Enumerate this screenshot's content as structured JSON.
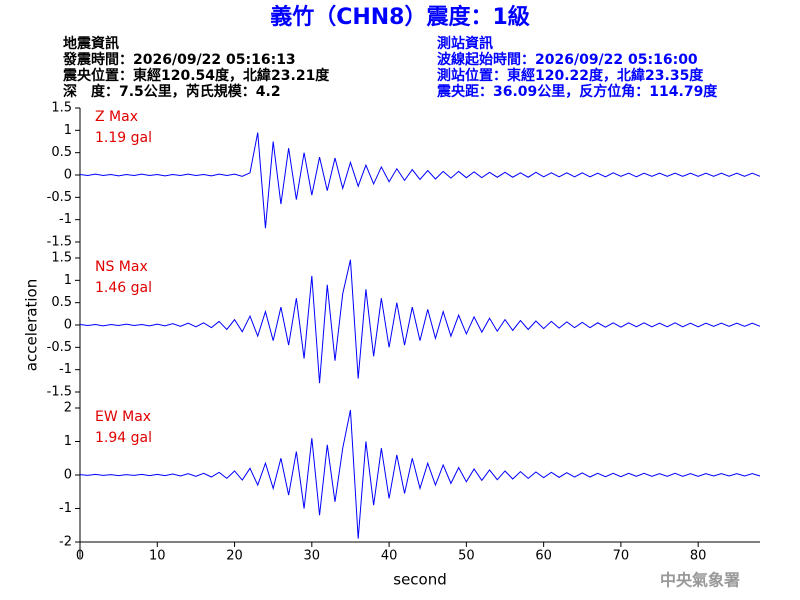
{
  "title": "義竹（CHN8）震度：1級",
  "event_info": [
    "地震資訊",
    "發震時間：2026/09/22 05:16:13",
    "震央位置：東經120.54度，北緯23.21度",
    "深　度：7.5公里，芮氏規模：4.2"
  ],
  "station_info": [
    "測站資訊",
    "波線起始時間：2026/09/22 05:16:00",
    "測站位置：東經120.22度，北緯23.35度",
    "震央距：36.09公里，反方位角：114.79度"
  ],
  "credit": "中央氣象署",
  "chart_data": [
    {
      "type": "line",
      "annotations": [
        "Z Max",
        "1.19 gal"
      ],
      "color": "#0000ff",
      "xlim": [
        0,
        88
      ],
      "ylim": [
        -1.5,
        1.5
      ],
      "yticks": [
        -1.5,
        -1,
        -0.5,
        0,
        0.5,
        1,
        1.5
      ],
      "x": [
        0,
        1,
        2,
        3,
        4,
        5,
        6,
        7,
        8,
        9,
        10,
        11,
        12,
        13,
        14,
        15,
        16,
        17,
        18,
        19,
        20,
        21,
        22,
        23,
        24,
        25,
        26,
        27,
        28,
        29,
        30,
        31,
        32,
        33,
        34,
        35,
        36,
        37,
        38,
        39,
        40,
        41,
        42,
        43,
        44,
        45,
        46,
        47,
        48,
        49,
        50,
        51,
        52,
        53,
        54,
        55,
        56,
        57,
        58,
        59,
        60,
        61,
        62,
        63,
        64,
        65,
        66,
        67,
        68,
        69,
        70,
        71,
        72,
        73,
        74,
        75,
        76,
        77,
        78,
        79,
        80,
        81,
        82,
        83,
        84,
        85,
        86,
        87,
        88
      ],
      "values": [
        0.01,
        -0.01,
        0.02,
        -0.01,
        0.01,
        -0.02,
        0.01,
        -0.01,
        0.02,
        -0.01,
        0.01,
        -0.02,
        0.01,
        -0.01,
        0.02,
        -0.01,
        0.01,
        -0.02,
        0.02,
        -0.01,
        0.02,
        -0.03,
        0.05,
        0.95,
        -1.19,
        0.75,
        -0.65,
        0.6,
        -0.55,
        0.5,
        -0.45,
        0.4,
        -0.35,
        0.38,
        -0.3,
        0.28,
        -0.25,
        0.22,
        -0.2,
        0.18,
        -0.15,
        0.14,
        -0.12,
        0.12,
        -0.1,
        0.1,
        -0.09,
        0.08,
        -0.07,
        0.08,
        -0.06,
        0.07,
        -0.06,
        0.06,
        -0.05,
        0.06,
        -0.05,
        0.05,
        -0.05,
        0.06,
        -0.04,
        0.05,
        -0.04,
        0.05,
        -0.04,
        0.05,
        -0.04,
        0.04,
        -0.04,
        0.05,
        -0.03,
        0.04,
        -0.04,
        0.04,
        -0.03,
        0.04,
        -0.03,
        0.04,
        -0.03,
        0.04,
        -0.03,
        0.04,
        -0.03,
        0.04,
        -0.03,
        0.04,
        -0.03,
        0.04,
        -0.03
      ]
    },
    {
      "type": "line",
      "annotations": [
        "NS Max",
        "1.46 gal"
      ],
      "color": "#0000ff",
      "ylabel": "acceleration",
      "xlim": [
        0,
        88
      ],
      "ylim": [
        -1.5,
        1.5
      ],
      "yticks": [
        -1.5,
        -1,
        -0.5,
        0,
        0.5,
        1,
        1.5
      ],
      "x": [
        0,
        1,
        2,
        3,
        4,
        5,
        6,
        7,
        8,
        9,
        10,
        11,
        12,
        13,
        14,
        15,
        16,
        17,
        18,
        19,
        20,
        21,
        22,
        23,
        24,
        25,
        26,
        27,
        28,
        29,
        30,
        31,
        32,
        33,
        34,
        35,
        36,
        37,
        38,
        39,
        40,
        41,
        42,
        43,
        44,
        45,
        46,
        47,
        48,
        49,
        50,
        51,
        52,
        53,
        54,
        55,
        56,
        57,
        58,
        59,
        60,
        61,
        62,
        63,
        64,
        65,
        66,
        67,
        68,
        69,
        70,
        71,
        72,
        73,
        74,
        75,
        76,
        77,
        78,
        79,
        80,
        81,
        82,
        83,
        84,
        85,
        86,
        87,
        88
      ],
      "values": [
        0.01,
        -0.01,
        0.01,
        -0.02,
        0.01,
        -0.01,
        0.02,
        -0.01,
        0.01,
        -0.02,
        0.02,
        -0.02,
        0.03,
        -0.03,
        0.04,
        -0.04,
        0.05,
        -0.06,
        0.08,
        -0.1,
        0.12,
        -0.15,
        0.2,
        -0.25,
        0.3,
        -0.35,
        0.4,
        -0.45,
        0.6,
        -0.75,
        1.1,
        -1.3,
        0.9,
        -0.8,
        0.7,
        1.46,
        -1.2,
        0.8,
        -0.7,
        0.6,
        -0.5,
        0.5,
        -0.45,
        0.4,
        -0.35,
        0.35,
        -0.3,
        0.3,
        -0.25,
        0.22,
        -0.2,
        0.18,
        -0.16,
        0.15,
        -0.14,
        0.12,
        -0.12,
        0.1,
        -0.1,
        0.09,
        -0.08,
        0.08,
        -0.07,
        0.07,
        -0.06,
        0.06,
        -0.06,
        0.05,
        -0.05,
        0.05,
        -0.05,
        0.05,
        -0.04,
        0.05,
        -0.04,
        0.04,
        -0.04,
        0.05,
        -0.04,
        0.04,
        -0.04,
        0.04,
        -0.03,
        0.04,
        -0.03,
        0.04,
        -0.03,
        0.04,
        -0.03
      ]
    },
    {
      "type": "line",
      "annotations": [
        "EW Max",
        "1.94 gal"
      ],
      "color": "#0000ff",
      "xlabel": "second",
      "xlim": [
        0,
        88
      ],
      "xticks": [
        0,
        10,
        20,
        30,
        40,
        50,
        60,
        70,
        80
      ],
      "ylim": [
        -2,
        2
      ],
      "yticks": [
        -2,
        -1,
        0,
        1,
        2
      ],
      "x": [
        0,
        1,
        2,
        3,
        4,
        5,
        6,
        7,
        8,
        9,
        10,
        11,
        12,
        13,
        14,
        15,
        16,
        17,
        18,
        19,
        20,
        21,
        22,
        23,
        24,
        25,
        26,
        27,
        28,
        29,
        30,
        31,
        32,
        33,
        34,
        35,
        36,
        37,
        38,
        39,
        40,
        41,
        42,
        43,
        44,
        45,
        46,
        47,
        48,
        49,
        50,
        51,
        52,
        53,
        54,
        55,
        56,
        57,
        58,
        59,
        60,
        61,
        62,
        63,
        64,
        65,
        66,
        67,
        68,
        69,
        70,
        71,
        72,
        73,
        74,
        75,
        76,
        77,
        78,
        79,
        80,
        81,
        82,
        83,
        84,
        85,
        86,
        87,
        88
      ],
      "values": [
        0.01,
        -0.01,
        0.02,
        -0.01,
        0.01,
        -0.02,
        0.01,
        -0.01,
        0.02,
        -0.02,
        0.02,
        -0.02,
        0.03,
        -0.03,
        0.04,
        -0.04,
        0.05,
        -0.06,
        0.08,
        -0.1,
        0.12,
        -0.15,
        0.2,
        -0.3,
        0.35,
        -0.4,
        0.5,
        -0.6,
        0.7,
        -1.0,
        1.1,
        -1.2,
        0.9,
        -0.8,
        0.8,
        1.94,
        -1.9,
        1.0,
        -0.9,
        0.8,
        -0.7,
        0.6,
        -0.55,
        0.5,
        -0.4,
        0.35,
        -0.3,
        0.3,
        -0.25,
        0.22,
        -0.2,
        0.18,
        -0.16,
        0.15,
        -0.14,
        0.12,
        -0.12,
        0.1,
        -0.1,
        0.09,
        -0.08,
        0.08,
        -0.07,
        0.07,
        -0.06,
        0.06,
        -0.06,
        0.05,
        -0.05,
        0.05,
        -0.05,
        0.05,
        -0.04,
        0.05,
        -0.04,
        0.04,
        -0.04,
        0.05,
        -0.04,
        0.04,
        -0.04,
        0.04,
        -0.03,
        0.04,
        -0.03,
        0.04,
        -0.03,
        0.04,
        -0.03
      ]
    }
  ]
}
